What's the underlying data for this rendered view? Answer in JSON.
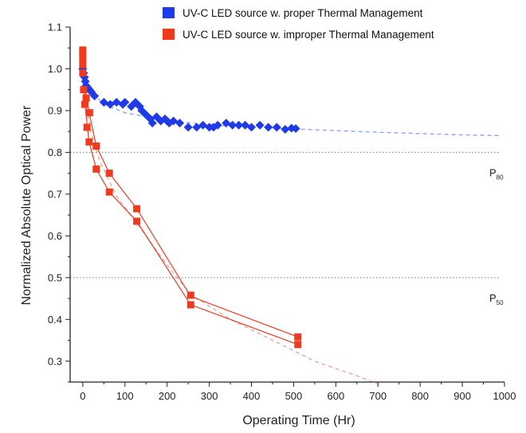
{
  "chart_data": {
    "type": "scatter",
    "xlabel": "Operating Time (Hr)",
    "ylabel": "Normalized Absolute Optical Power",
    "xlim": [
      -30,
      1000
    ],
    "ylim": [
      0.25,
      1.1
    ],
    "x_ticks": [
      0,
      100,
      200,
      300,
      400,
      500,
      600,
      700,
      800,
      900,
      1000
    ],
    "y_ticks": [
      0.3,
      0.4,
      0.5,
      0.6,
      0.7,
      0.8,
      0.9,
      1.0,
      1.1
    ],
    "x_tick_labels": [
      "0",
      "100",
      "200",
      "300",
      "400",
      "500",
      "600",
      "700",
      "800",
      "900",
      "1000"
    ],
    "y_tick_labels": [
      "0.3",
      "0.4",
      "0.5",
      "0.6",
      "0.7",
      "0.8",
      "0.9",
      "1.0",
      "1.1"
    ],
    "legend_position": "top",
    "grid": false,
    "series": [
      {
        "name": "UV-C LED source w. proper Thermal Management",
        "color": "#1f3be8",
        "marker": "diamond",
        "connect": false,
        "points": [
          [
            0,
            1.0
          ],
          [
            2,
            0.99
          ],
          [
            4,
            0.98
          ],
          [
            6,
            0.97
          ],
          [
            8,
            0.96
          ],
          [
            12,
            0.955
          ],
          [
            16,
            0.95
          ],
          [
            20,
            0.945
          ],
          [
            28,
            0.935
          ],
          [
            50,
            0.92
          ],
          [
            65,
            0.915
          ],
          [
            80,
            0.92
          ],
          [
            95,
            0.915
          ],
          [
            100,
            0.92
          ],
          [
            115,
            0.91
          ],
          [
            125,
            0.92
          ],
          [
            135,
            0.91
          ],
          [
            140,
            0.9
          ],
          [
            150,
            0.89
          ],
          [
            160,
            0.88
          ],
          [
            165,
            0.87
          ],
          [
            175,
            0.885
          ],
          [
            185,
            0.875
          ],
          [
            195,
            0.88
          ],
          [
            200,
            0.875
          ],
          [
            205,
            0.87
          ],
          [
            215,
            0.875
          ],
          [
            230,
            0.87
          ],
          [
            250,
            0.86
          ],
          [
            270,
            0.86
          ],
          [
            285,
            0.865
          ],
          [
            300,
            0.86
          ],
          [
            310,
            0.86
          ],
          [
            320,
            0.865
          ],
          [
            340,
            0.87
          ],
          [
            355,
            0.865
          ],
          [
            370,
            0.865
          ],
          [
            385,
            0.865
          ],
          [
            400,
            0.86
          ],
          [
            420,
            0.865
          ],
          [
            440,
            0.86
          ],
          [
            460,
            0.86
          ],
          [
            480,
            0.855
          ],
          [
            495,
            0.858
          ],
          [
            505,
            0.857
          ]
        ]
      },
      {
        "name": "UV-C LED source w. improper Thermal Management",
        "color": "#f03a1e",
        "marker": "square",
        "connect": true,
        "lines": [
          [
            [
              0,
              1.04
            ],
            [
              5,
              0.915
            ],
            [
              15,
              0.825
            ],
            [
              32,
              0.76
            ],
            [
              63,
              0.705
            ],
            [
              128,
              0.635
            ],
            [
              256,
              0.435
            ],
            [
              510,
              0.34
            ]
          ],
          [
            [
              0,
              1.02
            ],
            [
              5,
              0.955
            ],
            [
              15,
              0.895
            ],
            [
              32,
              0.815
            ],
            [
              63,
              0.75
            ],
            [
              128,
              0.665
            ],
            [
              256,
              0.455
            ],
            [
              510,
              0.358
            ]
          ]
        ],
        "points": [
          [
            0,
            1.045
          ],
          [
            0,
            1.035
          ],
          [
            0,
            1.025
          ],
          [
            0,
            1.01
          ],
          [
            0,
            0.99
          ],
          [
            2,
            0.95
          ],
          [
            5,
            0.915
          ],
          [
            8,
            0.93
          ],
          [
            10,
            0.86
          ],
          [
            15,
            0.825
          ],
          [
            16,
            0.895
          ],
          [
            32,
            0.76
          ],
          [
            32,
            0.815
          ],
          [
            63,
            0.705
          ],
          [
            63,
            0.75
          ],
          [
            128,
            0.635
          ],
          [
            128,
            0.665
          ],
          [
            256,
            0.435
          ],
          [
            256,
            0.458
          ],
          [
            510,
            0.34
          ],
          [
            510,
            0.358
          ]
        ]
      }
    ],
    "fits": [
      {
        "color": "#8ea2ff",
        "points": [
          [
            0,
            0.965
          ],
          [
            50,
            0.915
          ],
          [
            100,
            0.895
          ],
          [
            200,
            0.876
          ],
          [
            300,
            0.866
          ],
          [
            400,
            0.86
          ],
          [
            500,
            0.856
          ],
          [
            600,
            0.852
          ],
          [
            700,
            0.848
          ],
          [
            800,
            0.845
          ],
          [
            900,
            0.842
          ],
          [
            990,
            0.84
          ]
        ]
      },
      {
        "color": "#f2a5a5",
        "points": [
          [
            0,
            0.975
          ],
          [
            10,
            0.9
          ],
          [
            20,
            0.845
          ],
          [
            40,
            0.78
          ],
          [
            80,
            0.695
          ],
          [
            128,
            0.63
          ],
          [
            200,
            0.53
          ],
          [
            256,
            0.46
          ],
          [
            350,
            0.4
          ],
          [
            450,
            0.35
          ],
          [
            550,
            0.3
          ],
          [
            650,
            0.265
          ],
          [
            700,
            0.245
          ]
        ]
      }
    ],
    "reference_lines": [
      {
        "y": 0.8,
        "label": "P",
        "subscript": "80"
      },
      {
        "y": 0.5,
        "label": "P",
        "subscript": "50"
      }
    ]
  }
}
